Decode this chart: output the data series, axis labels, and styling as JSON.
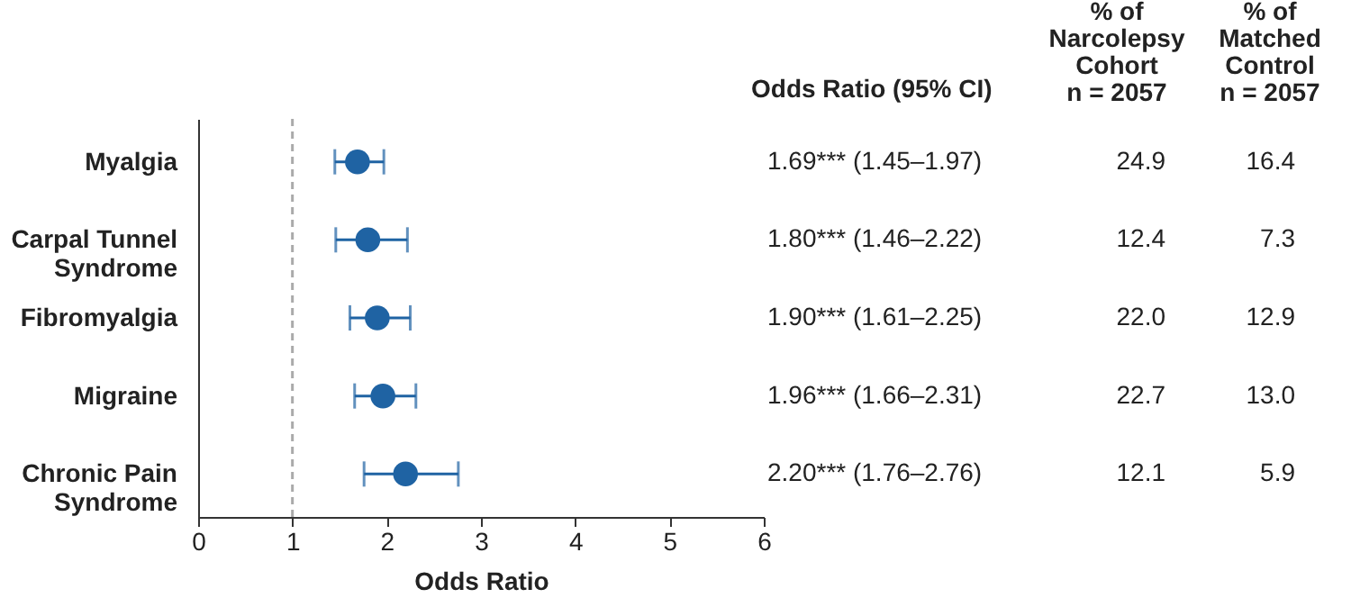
{
  "chart_data": {
    "type": "scatter",
    "orientation": "horizontal",
    "xlabel": "Odds Ratio",
    "categories": [
      "Myalgia",
      "Carpal Tunnel\nSyndrome",
      "Fibromyalgia",
      "Migraine",
      "Chronic Pain\nSyndrome"
    ],
    "series": [
      {
        "name": "Odds Ratio (95% CI)",
        "color": "#1f63a3",
        "values": [
          1.69,
          1.8,
          1.9,
          1.96,
          2.2
        ],
        "errors": [
          [
            1.45,
            1.97
          ],
          [
            1.46,
            2.22
          ],
          [
            1.61,
            2.25
          ],
          [
            1.66,
            2.31
          ],
          [
            1.76,
            2.76
          ]
        ],
        "value_labels": [
          "1.69*** (1.45–1.97)",
          "1.80*** (1.46–2.22)",
          "1.90*** (1.61–2.25)",
          "1.96*** (1.66–2.31)",
          "2.20*** (1.76–2.76)"
        ]
      }
    ],
    "annotations": [
      "% of\nNarcolepsy\nCohort\nn = 2057",
      "% of\nMatched\nControl\nn = 2057",
      "24.9",
      "16.4",
      "12.4",
      "7.3",
      "22.0",
      "12.9",
      "22.7",
      "13.0",
      "12.1",
      "5.9"
    ],
    "xlim": [
      0,
      6
    ],
    "xticks": [
      0,
      1,
      2,
      3,
      4,
      5,
      6
    ],
    "ref_lines": [
      {
        "axis": "x",
        "value": 1,
        "color": "#aaaaaa",
        "line_style": "dashed"
      }
    ],
    "marker": "circle",
    "grid": false
  }
}
